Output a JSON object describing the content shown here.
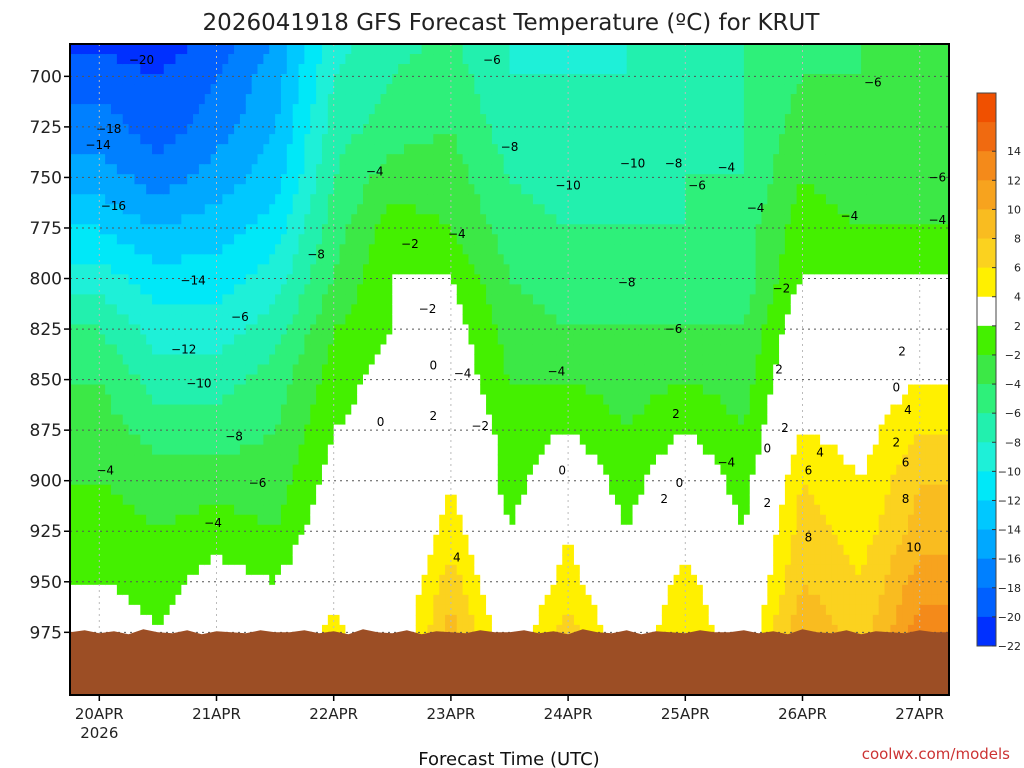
{
  "title": "2026041918 GFS Forecast Temperature (ºC) for KRUT",
  "credit": "coolwx.com/models",
  "chart_data": {
    "type": "heatmap",
    "subtype": "time-pressure filled contour",
    "title": "2026041918 GFS Forecast Temperature (ºC) for KRUT",
    "xlabel": "Forecast Time (UTC)",
    "ylabel": "",
    "x_ticks": [
      {
        "day": 0,
        "label": "20APR",
        "sublabel": "2026"
      },
      {
        "day": 1,
        "label": "21APR"
      },
      {
        "day": 2,
        "label": "22APR"
      },
      {
        "day": 3,
        "label": "23APR"
      },
      {
        "day": 4,
        "label": "24APR"
      },
      {
        "day": 5,
        "label": "25APR"
      },
      {
        "day": 6,
        "label": "26APR"
      },
      {
        "day": 7,
        "label": "27APR"
      }
    ],
    "xlim_days": [
      -0.25,
      7.25
    ],
    "y_ticks": [
      700,
      725,
      750,
      775,
      800,
      825,
      850,
      875,
      900,
      925,
      950,
      975
    ],
    "ylim_hpa": [
      684,
      1006
    ],
    "colorbar": {
      "ticks": [
        14,
        12,
        10,
        8,
        6,
        4,
        2,
        -2,
        -4,
        -6,
        -8,
        -10,
        -12,
        -14,
        -16,
        -18,
        -20,
        -22
      ],
      "levels": [
        {
          "min": 14,
          "max": 16,
          "color": "#f05000"
        },
        {
          "min": 12,
          "max": 14,
          "color": "#f06a10"
        },
        {
          "min": 10,
          "max": 12,
          "color": "#f48a1a"
        },
        {
          "min": 8,
          "max": 10,
          "color": "#f7a31e"
        },
        {
          "min": 6,
          "max": 8,
          "color": "#f9bc20"
        },
        {
          "min": 4,
          "max": 6,
          "color": "#fbd21f"
        },
        {
          "min": 2,
          "max": 4,
          "color": "#fff000"
        },
        {
          "min": -2,
          "max": 2,
          "color": "#ffffff"
        },
        {
          "min": -4,
          "max": -2,
          "color": "#44f000"
        },
        {
          "min": -6,
          "max": -4,
          "color": "#3ce846"
        },
        {
          "min": -8,
          "max": -6,
          "color": "#2ef07a"
        },
        {
          "min": -10,
          "max": -8,
          "color": "#22f0ae"
        },
        {
          "min": -12,
          "max": -10,
          "color": "#1ef0d8"
        },
        {
          "min": -14,
          "max": -12,
          "color": "#00e8f8"
        },
        {
          "min": -16,
          "max": -14,
          "color": "#00c8ff"
        },
        {
          "min": -18,
          "max": -16,
          "color": "#00a8ff"
        },
        {
          "min": -20,
          "max": -18,
          "color": "#0080ff"
        },
        {
          "min": -22,
          "max": -20,
          "color": "#0060ff"
        },
        {
          "min": -24,
          "max": -22,
          "color": "#0030ff"
        }
      ]
    },
    "time_days": [
      0,
      0.5,
      1,
      1.5,
      2,
      2.5,
      3,
      3.5,
      4,
      4.5,
      5,
      5.5,
      6,
      6.5,
      7
    ],
    "profiles_note": "temperature (ºC) at pressures [1000,975,950,925,900,875,850,825,800,775,750,725,700,675] hPa for each time",
    "pressure_levels": [
      1000,
      975,
      950,
      925,
      900,
      875,
      850,
      825,
      800,
      775,
      750,
      725,
      700,
      675
    ],
    "profiles": [
      [
        2,
        0,
        -2,
        -3,
        -4,
        -5,
        -6,
        -8,
        -11,
        -14,
        -17,
        -19,
        -21,
        -23
      ],
      [
        -1,
        -2,
        -3,
        -4,
        -5,
        -7,
        -9,
        -11,
        -13,
        -16,
        -19,
        -21,
        -22,
        -24
      ],
      [
        1,
        0,
        -1,
        -3,
        -5,
        -7,
        -9,
        -11,
        -13,
        -15,
        -17,
        -19,
        -20,
        -22
      ],
      [
        -1,
        -1,
        -2,
        -4,
        -5,
        -6,
        -7,
        -9,
        -11,
        -13,
        -15,
        -16,
        -17,
        -18
      ],
      [
        5,
        3,
        1,
        0,
        -1,
        -2,
        -3,
        -4,
        -6,
        -7,
        -8,
        -9,
        -10,
        -11
      ],
      [
        0,
        -1,
        -1,
        -2,
        -2,
        -1,
        -1,
        -2,
        -2,
        -3,
        -5,
        -7,
        -8,
        -9
      ],
      [
        8,
        7,
        5,
        3,
        2,
        1,
        0,
        -1,
        -2,
        -4,
        -5,
        -6,
        -7,
        -8
      ],
      [
        1,
        0,
        -1,
        -2,
        -3,
        -3,
        -4,
        -5,
        -6,
        -7,
        -8,
        -9,
        -10,
        -10
      ],
      [
        7,
        5,
        3,
        2,
        0,
        -2,
        -4,
        -6,
        -7,
        -8,
        -9,
        -10,
        -10,
        -11
      ],
      [
        1,
        0,
        -1,
        -2,
        -3,
        -4,
        -5,
        -6,
        -7,
        -8,
        -9,
        -9,
        -10,
        -10
      ],
      [
        6,
        4,
        3,
        1,
        0,
        -2,
        -4,
        -6,
        -7,
        -8,
        -8,
        -9,
        -9,
        -10
      ],
      [
        1,
        0,
        -1,
        -2,
        -3,
        -4,
        -5,
        -6,
        -7,
        -7,
        -8,
        -8,
        -8,
        -8
      ],
      [
        10,
        8,
        6,
        5,
        4,
        2,
        1,
        0,
        -2,
        -3,
        -4,
        -5,
        -6,
        -7
      ],
      [
        6,
        5,
        4,
        3,
        2,
        1,
        0,
        -1,
        -2,
        -4,
        -5,
        -6,
        -6,
        -6
      ],
      [
        13,
        11,
        9,
        7,
        6,
        4,
        2,
        0,
        -2,
        -4,
        -5,
        -6,
        -6,
        -5
      ]
    ],
    "terrain_hpa": 975,
    "contour_labels": [
      {
        "d": -0.01,
        "p": 736,
        "v": "-14"
      },
      {
        "d": 0.36,
        "p": 694,
        "v": "-20"
      },
      {
        "d": 0.08,
        "p": 728,
        "v": "-18"
      },
      {
        "d": 0.12,
        "p": 766,
        "v": "-16"
      },
      {
        "d": 0.8,
        "p": 803,
        "v": "-14"
      },
      {
        "d": 0.72,
        "p": 837,
        "v": "-12"
      },
      {
        "d": 0.85,
        "p": 854,
        "v": "-10"
      },
      {
        "d": 1.15,
        "p": 880,
        "v": "-8"
      },
      {
        "d": 1.35,
        "p": 903,
        "v": "-6"
      },
      {
        "d": 0.05,
        "p": 897,
        "v": "-4"
      },
      {
        "d": 0.97,
        "p": 923,
        "v": "-4"
      },
      {
        "d": 1.2,
        "p": 821,
        "v": "-6"
      },
      {
        "d": 1.85,
        "p": 790,
        "v": "-8"
      },
      {
        "d": 2.35,
        "p": 749,
        "v": "-4"
      },
      {
        "d": 2.65,
        "p": 785,
        "v": "-2"
      },
      {
        "d": 2.8,
        "p": 817,
        "v": "-2"
      },
      {
        "d": 2.85,
        "p": 845,
        "v": "0"
      },
      {
        "d": 2.4,
        "p": 873,
        "v": "0"
      },
      {
        "d": 2.85,
        "p": 870,
        "v": "2"
      },
      {
        "d": 3.05,
        "p": 940,
        "v": "4"
      },
      {
        "d": 3.35,
        "p": 694,
        "v": "-6"
      },
      {
        "d": 3.5,
        "p": 737,
        "v": "-8"
      },
      {
        "d": 3.05,
        "p": 780,
        "v": "-4"
      },
      {
        "d": 3.1,
        "p": 849,
        "v": "-4"
      },
      {
        "d": 3.25,
        "p": 875,
        "v": "-2"
      },
      {
        "d": 4,
        "p": 756,
        "v": "-10"
      },
      {
        "d": 3.95,
        "p": 897,
        "v": "0"
      },
      {
        "d": 3.9,
        "p": 848,
        "v": "-4"
      },
      {
        "d": 4.55,
        "p": 745,
        "v": "-10"
      },
      {
        "d": 4.9,
        "p": 745,
        "v": "-8"
      },
      {
        "d": 4.5,
        "p": 804,
        "v": "-8"
      },
      {
        "d": 4.9,
        "p": 827,
        "v": "-6"
      },
      {
        "d": 4.92,
        "p": 869,
        "v": "2"
      },
      {
        "d": 4.95,
        "p": 903,
        "v": "0"
      },
      {
        "d": 4.82,
        "p": 911,
        "v": "2"
      },
      {
        "d": 5.1,
        "p": 756,
        "v": "-6"
      },
      {
        "d": 5.35,
        "p": 747,
        "v": "-4"
      },
      {
        "d": 5.35,
        "p": 893,
        "v": "-4"
      },
      {
        "d": 5.6,
        "p": 767,
        "v": "-4"
      },
      {
        "d": 5.82,
        "p": 807,
        "v": "-2"
      },
      {
        "d": 5.8,
        "p": 847,
        "v": "2"
      },
      {
        "d": 5.85,
        "p": 876,
        "v": "2"
      },
      {
        "d": 5.7,
        "p": 886,
        "v": "0"
      },
      {
        "d": 5.7,
        "p": 913,
        "v": "2"
      },
      {
        "d": 6.05,
        "p": 897,
        "v": "6"
      },
      {
        "d": 6.15,
        "p": 888,
        "v": "4"
      },
      {
        "d": 6.05,
        "p": 930,
        "v": "8"
      },
      {
        "d": 6.6,
        "p": 705,
        "v": "-6"
      },
      {
        "d": 6.4,
        "p": 771,
        "v": "-4"
      },
      {
        "d": 6.85,
        "p": 838,
        "v": "2"
      },
      {
        "d": 6.8,
        "p": 856,
        "v": "0"
      },
      {
        "d": 6.9,
        "p": 867,
        "v": "4"
      },
      {
        "d": 6.8,
        "p": 883,
        "v": "2"
      },
      {
        "d": 6.88,
        "p": 893,
        "v": "6"
      },
      {
        "d": 6.88,
        "p": 911,
        "v": "8"
      },
      {
        "d": 6.95,
        "p": 935,
        "v": "10"
      },
      {
        "d": 7.15,
        "p": 752,
        "v": "-6"
      },
      {
        "d": 7.15,
        "p": 773,
        "v": "-4"
      }
    ]
  }
}
